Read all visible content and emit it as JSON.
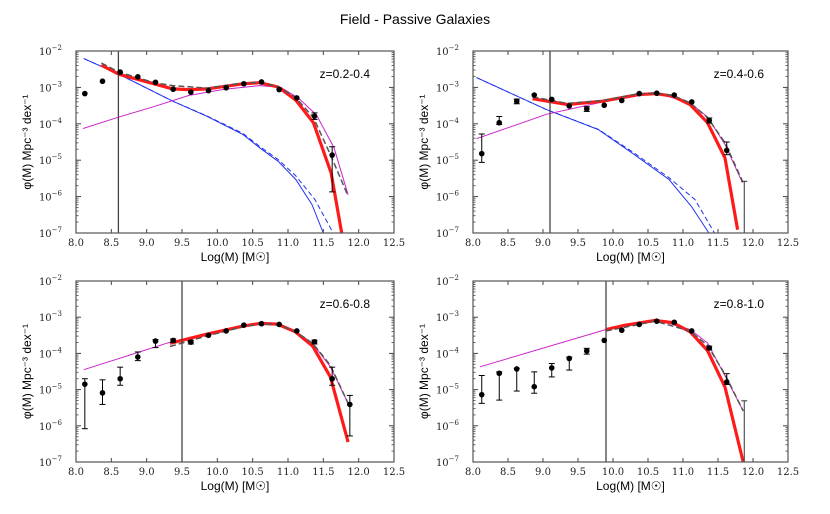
{
  "title": "Field - Passive Galaxies",
  "colors": {
    "data": "#000000",
    "total_fit": "#ff1a1a",
    "total_fit_alt": "#555555",
    "passive": "#cc22cc",
    "blue": "#2233ee",
    "completeness": "#444444"
  },
  "chart_data": [
    {
      "type": "line",
      "label": "z=0.2-0.4",
      "xlabel": "Log(M) [M☉]",
      "ylabel": "φ(M) Mpc⁻³ dex⁻¹",
      "xlim": [
        8.0,
        12.5
      ],
      "ylim_log10": [
        -7,
        -2
      ],
      "yscale": "log",
      "xticks": [
        "8.0",
        "8.5",
        "9.0",
        "9.5",
        "10.0",
        "10.5",
        "11.0",
        "11.5",
        "12.0",
        "12.5"
      ],
      "yticks": [
        "-7",
        "-6",
        "-5",
        "-4",
        "-3",
        "-2"
      ],
      "completeness_limit": 8.6,
      "points": {
        "x": [
          8.125,
          8.375,
          8.625,
          8.875,
          9.125,
          9.375,
          9.625,
          9.875,
          10.125,
          10.375,
          10.625,
          10.875,
          11.125,
          11.375,
          11.625
        ],
        "log_phi": [
          -3.17,
          -2.83,
          -2.58,
          -2.71,
          -2.86,
          -3.05,
          -3.13,
          -3.09,
          -3.01,
          -2.9,
          -2.85,
          -3.06,
          -3.29,
          -3.79,
          -4.86
        ],
        "err": [
          null,
          null,
          null,
          null,
          null,
          null,
          null,
          null,
          null,
          null,
          null,
          null,
          null,
          [
            -3.88,
            -3.7
          ],
          [
            -5.87,
            -4.63
          ]
        ]
      },
      "upper_limits": [],
      "total_fit": {
        "x": [
          8.36,
          8.61,
          9.37,
          9.6,
          9.85,
          10.36,
          10.6,
          10.86,
          11.11,
          11.36,
          11.61,
          11.76
        ],
        "log_phi": [
          -2.39,
          -2.64,
          -3.04,
          -3.06,
          -3.04,
          -2.9,
          -2.87,
          -2.99,
          -3.35,
          -3.97,
          -5.35,
          -7.0
        ]
      },
      "total_fit_alt": {
        "x": [
          8.36,
          8.61,
          9.12,
          9.37,
          9.85,
          10.36,
          10.6,
          10.86,
          11.11,
          11.36,
          11.61,
          11.85
        ],
        "log_phi": [
          -2.33,
          -2.58,
          -2.88,
          -2.95,
          -3.02,
          -2.88,
          -2.86,
          -2.98,
          -3.28,
          -3.83,
          -4.89,
          -5.99
        ]
      },
      "passive": {
        "x": [
          8.1,
          8.6,
          9.1,
          9.6,
          10.1,
          10.6,
          10.9,
          11.15,
          11.4,
          11.65,
          11.85
        ],
        "log_phi": [
          -4.13,
          -3.82,
          -3.53,
          -3.22,
          -3.05,
          -2.95,
          -3.0,
          -3.3,
          -3.75,
          -4.65,
          -5.95
        ]
      },
      "blue": {
        "x": [
          8.11,
          8.61,
          9.37,
          9.85,
          10.36,
          10.6,
          10.86,
          11.11,
          11.34,
          11.5
        ],
        "log_phi": [
          -2.21,
          -2.64,
          -3.38,
          -3.79,
          -4.29,
          -4.66,
          -5.03,
          -5.53,
          -6.22,
          -7.0
        ]
      },
      "blue_alt": {
        "x": [
          8.11,
          8.61,
          9.37,
          9.85,
          10.36,
          10.6,
          10.86,
          11.11,
          11.38,
          11.64
        ],
        "log_phi": [
          -2.21,
          -2.64,
          -3.38,
          -3.78,
          -4.26,
          -4.62,
          -4.98,
          -5.43,
          -6.08,
          -7.0
        ]
      }
    },
    {
      "type": "line",
      "label": "z=0.4-0.6",
      "xlabel": "Log(M) [M☉]",
      "ylabel": "φ(M) Mpc⁻³ dex⁻¹",
      "xlim": [
        8.0,
        12.5
      ],
      "ylim_log10": [
        -7,
        -2
      ],
      "yscale": "log",
      "xticks": [
        "8.0",
        "8.5",
        "9.0",
        "9.5",
        "10.0",
        "10.5",
        "11.0",
        "11.5",
        "12.0",
        "12.5"
      ],
      "yticks": [
        "-7",
        "-6",
        "-5",
        "-4",
        "-3",
        "-2"
      ],
      "completeness_limit": 9.1,
      "points": {
        "x": [
          8.125,
          8.375,
          8.625,
          8.875,
          9.125,
          9.375,
          9.625,
          9.875,
          10.125,
          10.375,
          10.625,
          10.875,
          11.125,
          11.375,
          11.625
        ],
        "log_phi": [
          -4.82,
          -3.97,
          -3.38,
          -3.21,
          -3.33,
          -3.51,
          -3.59,
          -3.49,
          -3.36,
          -3.17,
          -3.16,
          -3.21,
          -3.4,
          -3.91,
          -4.73
        ],
        "err": [
          [
            -5.06,
            -4.28
          ],
          [
            -4.02,
            -3.8
          ],
          [
            -3.45,
            -3.32
          ],
          null,
          null,
          null,
          [
            -3.66,
            -3.53
          ],
          null,
          null,
          null,
          null,
          null,
          null,
          [
            -3.98,
            -3.84
          ],
          [
            -4.85,
            -4.5
          ]
        ]
      },
      "upper_limits": [
        {
          "x": 11.875,
          "log_phi_top": -5.58
        }
      ],
      "total_fit": {
        "x": [
          8.85,
          9.35,
          9.85,
          10.35,
          10.6,
          10.85,
          11.1,
          11.35,
          11.6,
          11.78
        ],
        "log_phi": [
          -3.31,
          -3.47,
          -3.38,
          -3.2,
          -3.17,
          -3.24,
          -3.47,
          -3.97,
          -4.94,
          -6.91
        ]
      },
      "total_fit_alt": {
        "x": [
          8.85,
          9.35,
          9.85,
          10.35,
          10.6,
          10.85,
          11.1,
          11.35,
          11.6,
          11.85
        ],
        "log_phi": [
          -3.26,
          -3.44,
          -3.36,
          -3.18,
          -3.15,
          -3.22,
          -3.42,
          -3.83,
          -4.52,
          -5.58
        ]
      },
      "passive": {
        "x": [
          8.05,
          9.05,
          9.8,
          10.6,
          11.1,
          11.35,
          11.6,
          11.85
        ],
        "log_phi": [
          -4.41,
          -3.74,
          -3.42,
          -3.15,
          -3.42,
          -3.81,
          -4.57,
          -5.62
        ]
      },
      "blue": {
        "x": [
          8.05,
          9.05,
          9.79,
          10.3,
          10.8,
          11.12,
          11.37
        ],
        "log_phi": [
          -2.73,
          -3.61,
          -4.16,
          -4.84,
          -5.53,
          -6.27,
          -7.0
        ]
      },
      "blue_alt": {
        "x": [
          8.05,
          9.05,
          9.79,
          10.3,
          10.8,
          11.17,
          11.45
        ],
        "log_phi": [
          -2.73,
          -3.61,
          -4.15,
          -4.8,
          -5.48,
          -6.08,
          -7.0
        ]
      }
    },
    {
      "type": "line",
      "label": "z=0.6-0.8",
      "xlabel": "Log(M) [M☉]",
      "ylabel": "φ(M) Mpc⁻³ dex⁻¹",
      "xlim": [
        8.0,
        12.5
      ],
      "ylim_log10": [
        -7,
        -2
      ],
      "yscale": "log",
      "xticks": [
        "8.0",
        "8.5",
        "9.0",
        "9.5",
        "10.0",
        "10.5",
        "11.0",
        "11.5",
        "12.0",
        "12.5"
      ],
      "yticks": [
        "-7",
        "-6",
        "-5",
        "-4",
        "-3",
        "-2"
      ],
      "completeness_limit": 9.5,
      "points": {
        "x": [
          8.125,
          8.375,
          8.625,
          8.875,
          9.125,
          9.375,
          9.625,
          9.875,
          10.125,
          10.375,
          10.625,
          10.875,
          11.125,
          11.375,
          11.625,
          11.875
        ],
        "log_phi": [
          -4.85,
          -5.09,
          -4.7,
          -4.1,
          -3.66,
          -3.64,
          -3.69,
          -3.5,
          -3.38,
          -3.22,
          -3.18,
          -3.2,
          -3.38,
          -3.68,
          -4.7,
          -5.41
        ],
        "err": [
          [
            -6.08,
            -4.7
          ],
          [
            -5.41,
            -4.73
          ],
          [
            -4.88,
            -4.38
          ],
          [
            -4.2,
            -3.96
          ],
          [
            -3.84,
            -3.62
          ],
          [
            -3.7,
            -3.6
          ],
          [
            -3.74,
            -3.64
          ],
          null,
          null,
          null,
          null,
          null,
          null,
          [
            -3.74,
            -3.63
          ],
          [
            -4.88,
            -4.38
          ],
          [
            -6.28,
            -5.16
          ]
        ]
      },
      "upper_limits": [],
      "total_fit": {
        "x": [
          9.33,
          9.85,
          10.35,
          10.6,
          10.85,
          11.1,
          11.35,
          11.6,
          11.85
        ],
        "log_phi": [
          -3.72,
          -3.47,
          -3.25,
          -3.17,
          -3.19,
          -3.4,
          -3.8,
          -4.65,
          -6.45
        ]
      },
      "total_fit_alt": {
        "x": [
          9.33,
          9.85,
          10.35,
          10.6,
          10.85,
          11.1,
          11.35,
          11.6,
          11.85
        ],
        "log_phi": [
          -3.81,
          -3.52,
          -3.27,
          -3.19,
          -3.2,
          -3.39,
          -3.72,
          -4.33,
          -5.38
        ]
      },
      "passive": {
        "x": [
          8.11,
          9.33,
          10.35,
          10.75,
          11.1,
          11.35,
          11.6,
          11.85
        ],
        "log_phi": [
          -4.45,
          -3.69,
          -3.22,
          -3.16,
          -3.38,
          -3.73,
          -4.37,
          -5.38
        ]
      },
      "blue": null,
      "blue_alt": null
    },
    {
      "type": "line",
      "label": "z=0.8-1.0",
      "xlabel": "Log(M) [M☉]",
      "ylabel": "φ(M) Mpc⁻³ dex⁻¹",
      "xlim": [
        8.0,
        12.5
      ],
      "ylim_log10": [
        -7,
        -2
      ],
      "yscale": "log",
      "xticks": [
        "8.0",
        "8.5",
        "9.0",
        "9.5",
        "10.0",
        "10.5",
        "11.0",
        "11.5",
        "12.0",
        "12.5"
      ],
      "yticks": [
        "-7",
        "-6",
        "-5",
        "-4",
        "-3",
        "-2"
      ],
      "completeness_limit": 9.9,
      "points": {
        "x": [
          8.125,
          8.375,
          8.625,
          8.875,
          9.125,
          9.375,
          9.625,
          9.875,
          10.125,
          10.375,
          10.625,
          10.875,
          11.125,
          11.375,
          11.625
        ],
        "log_phi": [
          -5.14,
          -4.55,
          -4.43,
          -4.92,
          -4.4,
          -4.14,
          -3.93,
          -3.64,
          -3.36,
          -3.2,
          -3.11,
          -3.14,
          -3.38,
          -3.85,
          -4.79
        ],
        "err": [
          [
            -5.38,
            -4.61
          ],
          [
            -5.29,
            -4.51
          ],
          [
            -5.04,
            -4.41
          ],
          [
            -5.1,
            -4.51
          ],
          [
            -4.65,
            -4.28
          ],
          [
            -4.46,
            -4.1
          ],
          [
            -4.02,
            -3.86
          ],
          null,
          null,
          null,
          null,
          null,
          null,
          [
            -3.9,
            -3.8
          ],
          [
            -4.86,
            -4.56
          ]
        ]
      },
      "upper_limits": [
        {
          "x": 11.875,
          "log_phi_top": -5.31
        }
      ],
      "total_fit": {
        "x": [
          9.9,
          10.15,
          10.6,
          10.85,
          11.1,
          11.35,
          11.6,
          11.86
        ],
        "log_phi": [
          -3.34,
          -3.23,
          -3.09,
          -3.15,
          -3.4,
          -3.92,
          -4.93,
          -7.0
        ]
      },
      "total_fit_alt": {
        "x": [
          9.9,
          10.6,
          11.1,
          11.35,
          11.6,
          11.86
        ],
        "log_phi": [
          -3.38,
          -3.11,
          -3.38,
          -3.78,
          -4.58,
          -5.59
        ]
      },
      "passive": {
        "x": [
          8.1,
          9.9,
          10.6,
          11.1,
          11.35,
          11.6,
          11.86
        ],
        "log_phi": [
          -4.37,
          -3.34,
          -3.06,
          -3.34,
          -3.71,
          -4.62,
          -5.59
        ]
      },
      "blue": null,
      "blue_alt": null
    }
  ]
}
